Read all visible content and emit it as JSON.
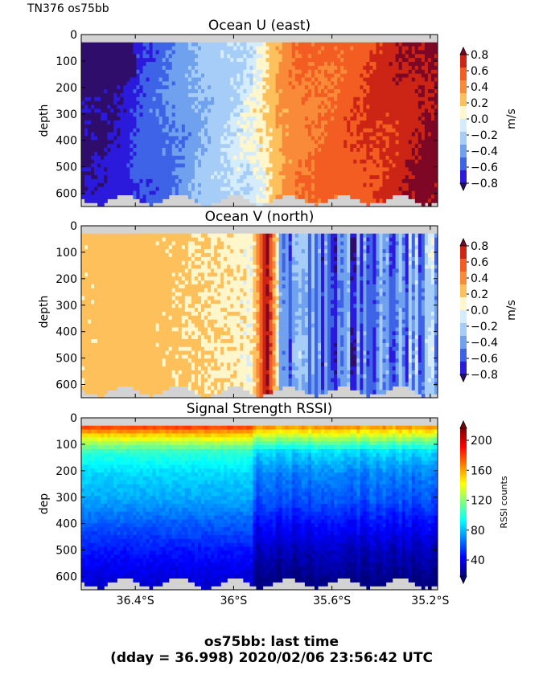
{
  "header": {
    "label": "TN376 os75bb"
  },
  "footer": {
    "line1": "os75bb: last time",
    "line2": "(dday = 36.998) 2020/02/06 23:56:42 UTC"
  },
  "colors": {
    "nodata": "#d3d3d3",
    "rssi_cmap": [
      "#00007f",
      "#0000ff",
      "#007fff",
      "#00ffff",
      "#7fff7f",
      "#ffff00",
      "#ff7f00",
      "#ff0000",
      "#7f0000"
    ],
    "vel_levels": [
      "#2e0d6b",
      "#2b1adb",
      "#3f63e6",
      "#6fa1ee",
      "#a6cdf7",
      "#d4ecfb",
      "#fff6cc",
      "#fec05a",
      "#f98a3a",
      "#f35d22",
      "#cc2415",
      "#7d0724"
    ]
  },
  "chart_data": [
    {
      "type": "heatmap",
      "title": "Ocean U (east)",
      "ylabel": "depth",
      "colorbar_label": "m/s",
      "colorbar_ticks": [
        "0.8",
        "0.6",
        "0.4",
        "0.2",
        "0.0",
        "−0.2",
        "−0.4",
        "−0.6",
        "−0.8"
      ],
      "y_ticks": [
        "0",
        "100",
        "200",
        "300",
        "400",
        "500",
        "600"
      ],
      "ylim": [
        650,
        0
      ],
      "xlim_lat": [
        -36.62,
        -35.17
      ],
      "x_direction": "south-to-north",
      "value_range": [
        -0.8,
        0.8
      ],
      "profile": {
        "lat": [
          -36.62,
          -36.45,
          -36.4,
          -36.3,
          -36.2,
          -36.1,
          -36.02,
          -35.92,
          -35.87,
          -35.82,
          -35.75,
          -35.65,
          -35.55,
          -35.45,
          -35.35,
          -35.25,
          -35.17
        ],
        "u": [
          -0.72,
          -0.66,
          -0.55,
          -0.45,
          -0.34,
          -0.19,
          -0.1,
          -0.02,
          0.06,
          0.22,
          0.36,
          0.42,
          0.47,
          0.55,
          0.62,
          0.7,
          0.75
        ]
      }
    },
    {
      "type": "heatmap",
      "title": "Ocean V (north)",
      "ylabel": "depth",
      "colorbar_label": "m/s",
      "colorbar_ticks": [
        "0.8",
        "0.6",
        "0.4",
        "0.2",
        "0.0",
        "−0.2",
        "−0.4",
        "−0.6",
        "−0.8"
      ],
      "y_ticks": [
        "0",
        "100",
        "200",
        "300",
        "400",
        "500",
        "600"
      ],
      "ylim": [
        650,
        0
      ],
      "xlim_lat": [
        -36.62,
        -35.17
      ],
      "value_range": [
        -0.8,
        0.8
      ],
      "profile": {
        "lat": [
          -36.62,
          -36.4,
          -36.2,
          -36.02,
          -35.92,
          -35.88,
          -35.86,
          -35.84,
          -35.8,
          -35.7,
          -35.55,
          -35.4,
          -35.3,
          -35.17
        ],
        "v": [
          0.12,
          0.15,
          0.1,
          0.06,
          0.03,
          0.55,
          0.75,
          0.35,
          -0.35,
          -0.42,
          -0.45,
          -0.4,
          -0.32,
          -0.28
        ]
      }
    },
    {
      "type": "heatmap",
      "title": "Signal Strength RSSI)",
      "ylabel": "dep",
      "colorbar_label": "RSSI counts",
      "colorbar_ticks": [
        "200",
        "160",
        "120",
        "80",
        "40"
      ],
      "y_ticks": [
        "0",
        "100",
        "200",
        "300",
        "400",
        "500",
        "600"
      ],
      "x_ticks": [
        "36.4°S",
        "36°S",
        "35.6°S",
        "35.2°S"
      ],
      "x_tick_lat": [
        -36.4,
        -36.0,
        -35.6,
        -35.2
      ],
      "ylim": [
        650,
        0
      ],
      "xlim_lat": [
        -36.62,
        -35.17
      ],
      "value_range": [
        20,
        220
      ],
      "depth_profile": {
        "depth": [
          20,
          40,
          80,
          120,
          200,
          300,
          400,
          500,
          600,
          650
        ],
        "rssi": [
          190,
          170,
          135,
          105,
          88,
          78,
          62,
          48,
          38,
          32
        ]
      }
    }
  ]
}
